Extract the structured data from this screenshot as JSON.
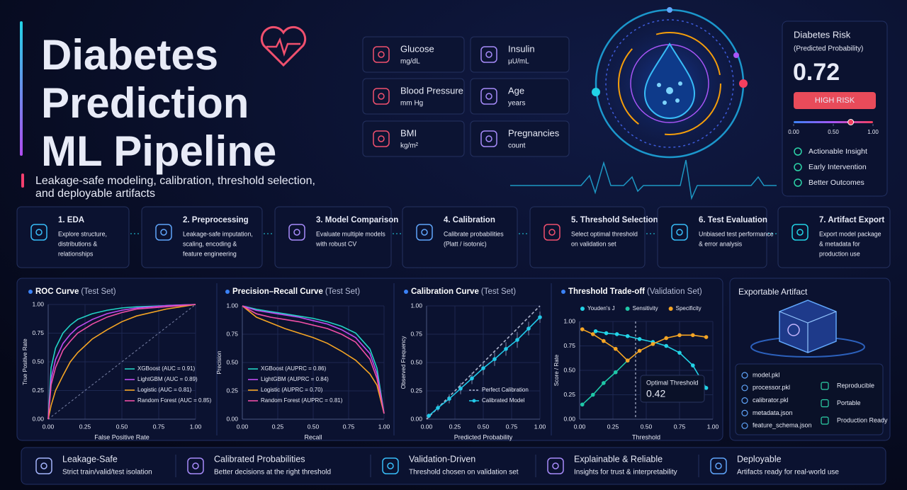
{
  "header": {
    "title_lines": [
      "Diabetes",
      "Prediction",
      "ML Pipeline"
    ],
    "subtitle_lines": [
      "Leakage-safe modeling, calibration, threshold selection,",
      "and deployable artifacts"
    ]
  },
  "features": [
    {
      "name": "Glucose",
      "unit": "mg/dL"
    },
    {
      "name": "Insulin",
      "unit": "µU/mL"
    },
    {
      "name": "Blood Pressure",
      "unit": "mm Hg"
    },
    {
      "name": "Age",
      "unit": "years"
    },
    {
      "name": "BMI",
      "unit": "kg/m²"
    },
    {
      "name": "Pregnancies",
      "unit": "count"
    }
  ],
  "risk": {
    "title": "Diabetes Risk",
    "subtitle": "(Predicted Probability)",
    "value": 0.72,
    "badge": "HIGH RISK",
    "scale_ticks": [
      {
        "value": 0,
        "label": "0.00"
      },
      {
        "value": 0.5,
        "label": "0.50"
      },
      {
        "value": 1,
        "label": "1.00"
      }
    ],
    "benefits": [
      "Actionable Insight",
      "Early Intervention",
      "Better Outcomes"
    ]
  },
  "pipeline": [
    {
      "title": "1. EDA",
      "lines": [
        "Explore structure,",
        "distributions &",
        "relationships"
      ]
    },
    {
      "title": "2. Preprocessing",
      "lines": [
        "Leakage-safe imputation,",
        "scaling, encoding &",
        "feature engineering"
      ]
    },
    {
      "title": "3. Model Comparison",
      "lines": [
        "Evaluate multiple models",
        "with robust CV"
      ]
    },
    {
      "title": "4. Calibration",
      "lines": [
        "Calibrate probabilities",
        "(Platt / isotonic)"
      ]
    },
    {
      "title": "5. Threshold Selection",
      "lines": [
        "Select optimal threshold",
        "on validation set"
      ]
    },
    {
      "title": "6. Test Evaluation",
      "lines": [
        "Unbiased test performance",
        "& error analysis"
      ]
    },
    {
      "title": "7. Artifact Export",
      "lines": [
        "Export model package",
        "& metadata for",
        "production use"
      ]
    }
  ],
  "chart_data": [
    {
      "type": "line",
      "title": "ROC Curve",
      "subtitle": "(Test Set)",
      "x_label": "False Positive Rate",
      "y_label": "True Positive Rate",
      "xlim": [
        0,
        1
      ],
      "ylim": [
        0,
        1
      ],
      "grid": true,
      "legend": "lower right",
      "chance_line": true,
      "xticks": [
        {
          "value": 0,
          "label": "0.00"
        },
        0.25,
        {
          "value": 0.5,
          "label": "0.50"
        },
        0.75,
        {
          "value": 1,
          "label": "1.00"
        }
      ],
      "yticks": [
        {
          "value": 0,
          "label": "0.00"
        },
        0.25,
        {
          "value": 0.5,
          "label": "0.50"
        },
        0.75,
        {
          "value": 1,
          "label": "1.00"
        }
      ],
      "series": [
        {
          "name": "XGBoost (AUC = 0.91)",
          "color": "#22d3c5",
          "x": [
            0,
            0.02,
            0.05,
            0.1,
            0.15,
            0.2,
            0.3,
            0.4,
            0.5,
            0.6,
            0.8,
            1
          ],
          "values": [
            0,
            0.45,
            0.62,
            0.75,
            0.82,
            0.87,
            0.92,
            0.95,
            0.97,
            0.98,
            0.99,
            1
          ]
        },
        {
          "name": "LightGBM (AUC = 0.89)",
          "color": "#c04cf0",
          "x": [
            0,
            0.02,
            0.05,
            0.1,
            0.15,
            0.2,
            0.3,
            0.4,
            0.5,
            0.6,
            0.8,
            1
          ],
          "values": [
            0,
            0.35,
            0.52,
            0.66,
            0.74,
            0.8,
            0.87,
            0.92,
            0.95,
            0.97,
            0.99,
            1
          ]
        },
        {
          "name": "Logistic (AUC = 0.81)",
          "color": "#f5a524",
          "x": [
            0,
            0.02,
            0.05,
            0.1,
            0.15,
            0.2,
            0.3,
            0.4,
            0.5,
            0.6,
            0.8,
            1
          ],
          "values": [
            0,
            0.12,
            0.25,
            0.38,
            0.5,
            0.58,
            0.7,
            0.78,
            0.85,
            0.9,
            0.96,
            1
          ]
        },
        {
          "name": "Random Forest (AUC = 0.85)",
          "color": "#ef4fa6",
          "x": [
            0,
            0.02,
            0.05,
            0.1,
            0.15,
            0.2,
            0.3,
            0.4,
            0.5,
            0.6,
            0.8,
            1
          ],
          "values": [
            0,
            0.3,
            0.45,
            0.6,
            0.68,
            0.75,
            0.83,
            0.89,
            0.93,
            0.96,
            0.98,
            1
          ]
        }
      ]
    },
    {
      "type": "line",
      "title": "Precision–Recall Curve",
      "subtitle": "(Test Set)",
      "x_label": "Recall",
      "y_label": "Precision",
      "xlim": [
        0,
        1
      ],
      "ylim": [
        0,
        1
      ],
      "grid": true,
      "legend": "lower left",
      "xticks": [
        {
          "value": 0,
          "label": "0.00"
        },
        0.25,
        {
          "value": 0.5,
          "label": "0.50"
        },
        0.75,
        {
          "value": 1,
          "label": "1.00"
        }
      ],
      "yticks": [
        {
          "value": 0,
          "label": "0.00"
        },
        0.25,
        {
          "value": 0.5,
          "label": "0.50"
        },
        0.75,
        {
          "value": 1,
          "label": "1.00"
        }
      ],
      "series": [
        {
          "name": "XGBoost (AUPRC = 0.86)",
          "color": "#22d3c5",
          "x": [
            0,
            0.1,
            0.2,
            0.3,
            0.4,
            0.5,
            0.6,
            0.7,
            0.8,
            0.9,
            0.95,
            1
          ],
          "values": [
            1,
            0.97,
            0.95,
            0.93,
            0.91,
            0.89,
            0.86,
            0.82,
            0.76,
            0.62,
            0.45,
            0.05
          ]
        },
        {
          "name": "LightGBM (AUPRC = 0.84)",
          "color": "#c04cf0",
          "x": [
            0,
            0.1,
            0.2,
            0.3,
            0.4,
            0.5,
            0.6,
            0.7,
            0.8,
            0.9,
            0.95,
            1
          ],
          "values": [
            1,
            0.96,
            0.94,
            0.92,
            0.9,
            0.87,
            0.84,
            0.79,
            0.72,
            0.58,
            0.4,
            0.05
          ]
        },
        {
          "name": "Logistic (AUPRC = 0.70)",
          "color": "#f5a524",
          "x": [
            0,
            0.1,
            0.2,
            0.3,
            0.4,
            0.5,
            0.6,
            0.7,
            0.8,
            0.9,
            0.95,
            1
          ],
          "values": [
            1,
            0.9,
            0.85,
            0.8,
            0.76,
            0.72,
            0.67,
            0.6,
            0.52,
            0.4,
            0.3,
            0.05
          ]
        },
        {
          "name": "Random Forest (AUPRC = 0.81)",
          "color": "#ef4fa6",
          "x": [
            0,
            0.1,
            0.2,
            0.3,
            0.4,
            0.5,
            0.6,
            0.7,
            0.8,
            0.9,
            0.95,
            1
          ],
          "values": [
            1,
            0.93,
            0.9,
            0.88,
            0.86,
            0.83,
            0.8,
            0.75,
            0.68,
            0.53,
            0.36,
            0.05
          ]
        }
      ]
    },
    {
      "type": "line",
      "title": "Calibration Curve",
      "subtitle": "(Test Set)",
      "x_label": "Predicted Probability",
      "y_label": "Observed Frequency",
      "xlim": [
        0,
        1
      ],
      "ylim": [
        0,
        1
      ],
      "grid": true,
      "legend": "lower right",
      "xticks": [
        {
          "value": 0,
          "label": "0.00"
        },
        0.25,
        {
          "value": 0.5,
          "label": "0.50"
        },
        0.75,
        {
          "value": 1,
          "label": "1.00"
        }
      ],
      "yticks": [
        {
          "value": 0,
          "label": "0.00"
        },
        0.25,
        {
          "value": 0.5,
          "label": "0.50"
        },
        0.75,
        {
          "value": 1,
          "label": "1.00"
        }
      ],
      "series": [
        {
          "name": "Perfect Calibration",
          "color": "#aeb4cc",
          "dashed": true,
          "x": [
            0,
            1
          ],
          "values": [
            0,
            1
          ]
        },
        {
          "name": "Calibrated Model",
          "color": "#22c8e8",
          "markers": true,
          "x": [
            0.02,
            0.1,
            0.2,
            0.3,
            0.4,
            0.5,
            0.6,
            0.7,
            0.8,
            0.9,
            1
          ],
          "values": [
            0.03,
            0.1,
            0.18,
            0.27,
            0.36,
            0.45,
            0.53,
            0.62,
            0.7,
            0.8,
            0.9
          ],
          "errors": [
            0.02,
            0.03,
            0.04,
            0.05,
            0.05,
            0.06,
            0.06,
            0.06,
            0.07,
            0.06,
            0.05
          ]
        }
      ]
    },
    {
      "type": "line",
      "title": "Threshold Trade-off",
      "subtitle": "(Validation Set)",
      "x_label": "Threshold",
      "y_label": "Score / Rate",
      "xlim": [
        0,
        1
      ],
      "ylim": [
        0,
        1
      ],
      "grid": true,
      "legend": "top",
      "xticks": [
        {
          "value": 0,
          "label": "0.00"
        },
        0.25,
        {
          "value": 0.5,
          "label": "0.50"
        },
        0.75,
        {
          "value": 1,
          "label": "1.00"
        }
      ],
      "yticks": [
        {
          "value": 0,
          "label": "0.00"
        },
        0.25,
        {
          "value": 0.5,
          "label": "0.50"
        },
        0.75,
        {
          "value": 1,
          "label": "1.00"
        }
      ],
      "optimal_label": "Optimal Threshold",
      "optimal_threshold": 0.42,
      "series": [
        {
          "name": "Youden's J",
          "color": "#22d3e6",
          "markers": true,
          "x": [
            0.12,
            0.2,
            0.28,
            0.36,
            0.45,
            0.55,
            0.65,
            0.75,
            0.85,
            0.95
          ],
          "values": [
            0.9,
            0.88,
            0.87,
            0.85,
            0.82,
            0.79,
            0.75,
            0.68,
            0.55,
            0.32
          ]
        },
        {
          "name": "Sensitivity",
          "color": "#1fc8a8",
          "markers": true,
          "x": [
            0.02,
            0.1,
            0.18,
            0.27,
            0.36
          ],
          "values": [
            0.15,
            0.25,
            0.37,
            0.48,
            0.6
          ]
        },
        {
          "name": "Specificity",
          "color": "#f5a524",
          "markers": true,
          "x": [
            0.02,
            0.1,
            0.18,
            0.27,
            0.36,
            0.45,
            0.55,
            0.65,
            0.75,
            0.85,
            0.95
          ],
          "values": [
            0.92,
            0.87,
            0.8,
            0.72,
            0.6,
            0.7,
            0.77,
            0.83,
            0.86,
            0.86,
            0.84
          ]
        }
      ]
    }
  ],
  "artifact": {
    "title": "Exportable Artifact",
    "files": [
      "model.pkl",
      "processor.pkl",
      "calibrator.pkl",
      "metadata.json",
      "feature_schema.json"
    ],
    "badges": [
      "Reproducible",
      "Portable",
      "Production Ready"
    ]
  },
  "footer": [
    {
      "title": "Leakage-Safe",
      "desc": "Strict train/valid/test isolation"
    },
    {
      "title": "Calibrated Probabilities",
      "desc": "Better decisions at the right threshold"
    },
    {
      "title": "Validation-Driven",
      "desc": "Threshold chosen on validation set"
    },
    {
      "title": "Explainable & Reliable",
      "desc": "Insights for trust & interpretability"
    },
    {
      "title": "Deployable",
      "desc": "Artifacts ready for real-world use"
    }
  ]
}
